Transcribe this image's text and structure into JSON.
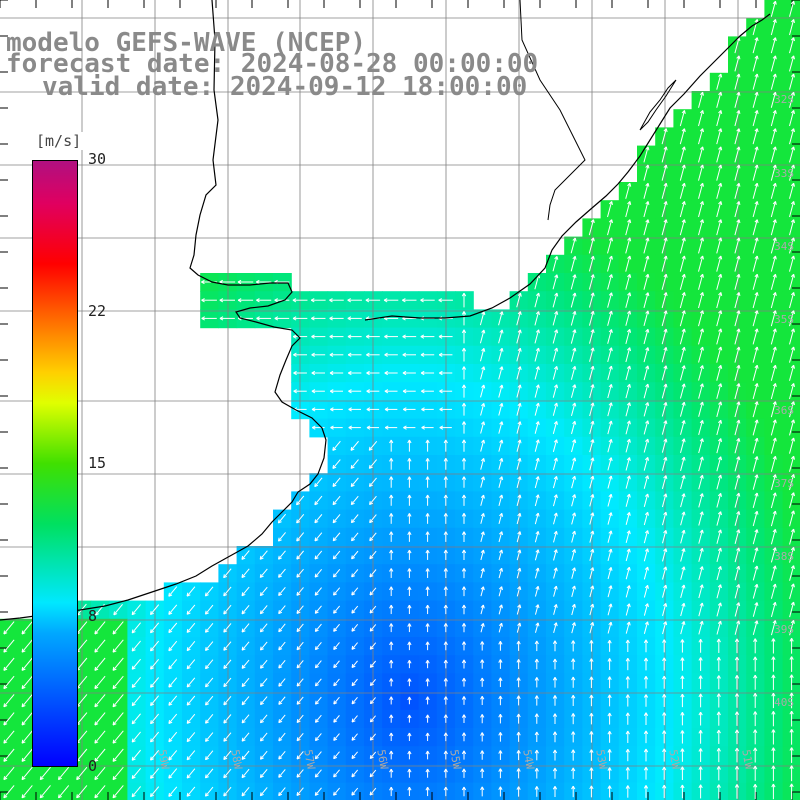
{
  "title": {
    "model": "modelo GEFS-WAVE (NCEP)",
    "forecast": "forecast date: 2024-08-28 00:00:00",
    "valid": "valid date: 2024-09-12 18:00:00"
  },
  "colorbar": {
    "unit": "[m/s]",
    "ticks": [
      "30",
      "22",
      "15",
      "8",
      "0"
    ],
    "colors": [
      "#0000ff",
      "#00a8ff",
      "#00e8ff",
      "#00e060",
      "#40e000",
      "#e0ff00",
      "#ff8000",
      "#ff0000",
      "#b01080"
    ]
  },
  "map": {
    "lat_labels": [
      "32S",
      "33S",
      "34S",
      "35S",
      "36S",
      "37S",
      "38S",
      "39S",
      "40S"
    ],
    "lon_labels": [
      "59W",
      "58W",
      "57W",
      "56W",
      "55W",
      "54W",
      "53W",
      "52W",
      "51W"
    ],
    "land_color": "#ffffff",
    "coast_color": "#000000",
    "grid_color": "#808080",
    "arrow_color": "#ffffff"
  }
}
